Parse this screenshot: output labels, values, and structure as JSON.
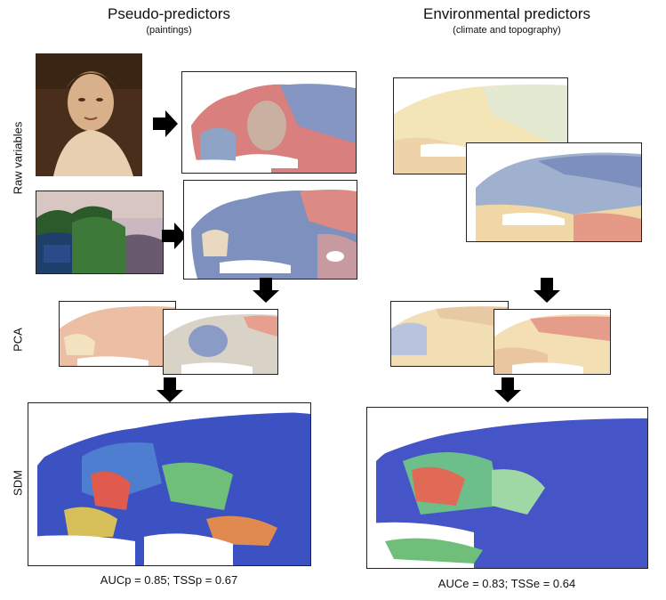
{
  "left": {
    "title": "Pseudo-predictors",
    "subtitle": "(paintings)",
    "metric": "AUCp = 0.85; TSSp = 0.67"
  },
  "right": {
    "title": "Environmental predictors",
    "subtitle": "(climate and topography)",
    "metric": "AUCe = 0.83; TSSe = 0.64"
  },
  "rows": {
    "raw": "Raw variables",
    "pca": "PCA",
    "sdm": "SDM"
  },
  "colors": {
    "warm": "#d9787a",
    "cream": "#f4e7b8",
    "cool": "#4a63b8",
    "sdm_blue": "#3b4fc4",
    "sdm_green": "#6fbf7a",
    "sdm_red": "#e05a4e"
  }
}
